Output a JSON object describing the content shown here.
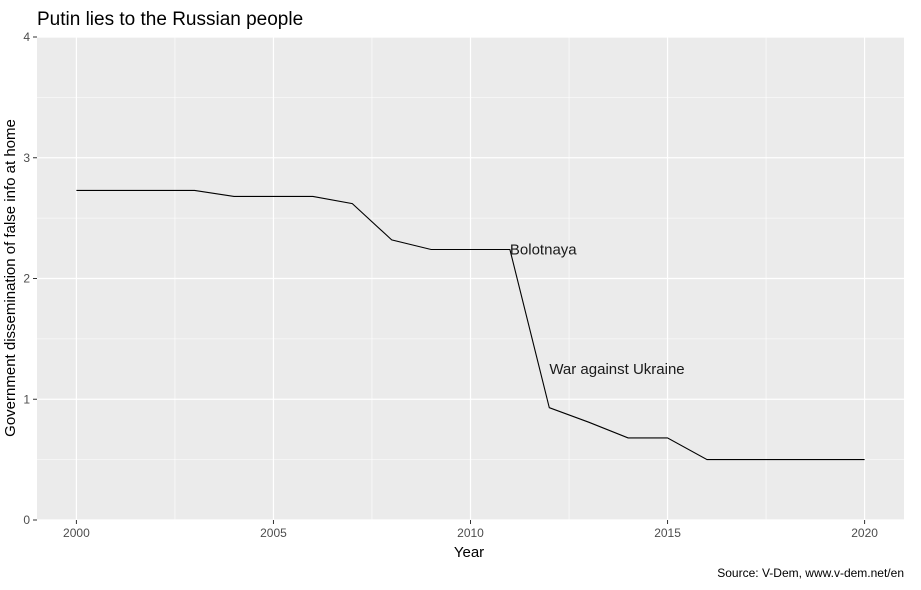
{
  "chart_data": {
    "type": "line",
    "title": "Putin lies to the Russian people",
    "xlabel": "Year",
    "ylabel": "Government dissemination of false info at home",
    "caption": "Source: V-Dem, www.v-dem.net/en",
    "xlim": [
      1999,
      2021
    ],
    "ylim": [
      0,
      4
    ],
    "x_ticks": [
      2000,
      2005,
      2010,
      2015,
      2020
    ],
    "y_ticks": [
      0,
      1,
      2,
      3,
      4
    ],
    "x_tick_labels": [
      "2000",
      "2005",
      "2010",
      "2015",
      "2020"
    ],
    "y_tick_labels": [
      "0",
      "1",
      "2",
      "3",
      "4"
    ],
    "grid": true,
    "background": "#ebebeb",
    "grid_color": "#ffffff",
    "line_color": "#000000",
    "series": [
      {
        "x": [
          2000,
          2001,
          2002,
          2003,
          2004,
          2005,
          2006,
          2007,
          2008,
          2009,
          2010,
          2011,
          2012,
          2013,
          2014,
          2015,
          2016,
          2017,
          2018,
          2019,
          2020
        ],
        "values": [
          2.73,
          2.73,
          2.73,
          2.73,
          2.68,
          2.68,
          2.68,
          2.62,
          2.32,
          2.24,
          2.24,
          2.24,
          0.93,
          0.81,
          0.68,
          0.68,
          0.5,
          0.5,
          0.5,
          0.5,
          0.5
        ]
      }
    ],
    "annotations": [
      {
        "text": "Bolotnaya",
        "x": 2011,
        "y": 2.24
      },
      {
        "text": "War against Ukraine",
        "x": 2012,
        "y": 1.25
      }
    ]
  }
}
